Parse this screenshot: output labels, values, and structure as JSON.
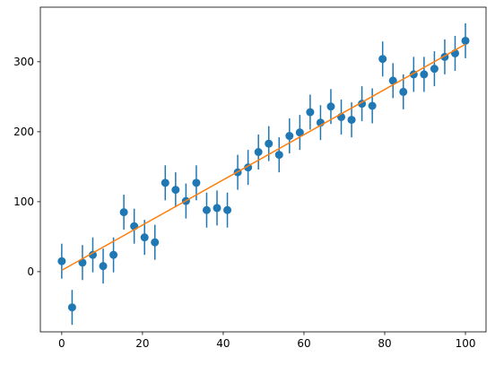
{
  "chart_data": {
    "type": "errorbar",
    "xlim": [
      -5.3,
      105.1
    ],
    "ylim": [
      -86,
      378
    ],
    "xticks": [
      0,
      20,
      40,
      60,
      80,
      100
    ],
    "yticks": [
      0,
      100,
      200,
      300
    ],
    "series": [
      {
        "type": "errorbar",
        "color": "#1f77b4",
        "x": [
          0,
          2.564,
          5.128,
          7.692,
          10.256,
          12.821,
          15.385,
          17.949,
          20.513,
          23.077,
          25.641,
          28.205,
          30.769,
          33.333,
          35.897,
          38.462,
          41.026,
          43.59,
          46.154,
          48.718,
          51.282,
          53.846,
          56.41,
          58.974,
          61.538,
          64.103,
          66.667,
          69.231,
          71.795,
          74.359,
          76.923,
          79.487,
          82.051,
          84.615,
          87.179,
          89.744,
          92.308,
          94.872,
          97.436,
          100
        ],
        "values": [
          15,
          -51,
          13,
          24,
          8,
          24,
          85,
          65,
          49,
          42,
          127,
          117,
          101,
          127,
          88,
          91,
          88,
          142,
          149,
          171,
          183,
          167,
          194,
          199,
          228,
          213,
          236,
          221,
          217,
          240,
          237,
          304,
          273,
          257,
          282,
          282,
          290,
          307,
          312,
          330
        ],
        "errors": [
          25,
          25,
          25,
          25,
          25,
          25,
          25,
          25,
          25,
          25,
          25,
          25,
          25,
          25,
          25,
          25,
          25,
          25,
          25,
          25,
          25,
          25,
          25,
          25,
          25,
          25,
          25,
          25,
          25,
          25,
          25,
          25,
          25,
          25,
          25,
          25,
          25,
          25,
          25,
          25
        ]
      },
      {
        "type": "line",
        "color": "#ff7f0e",
        "x": [
          0,
          100
        ],
        "values": [
          2,
          325
        ]
      }
    ]
  }
}
